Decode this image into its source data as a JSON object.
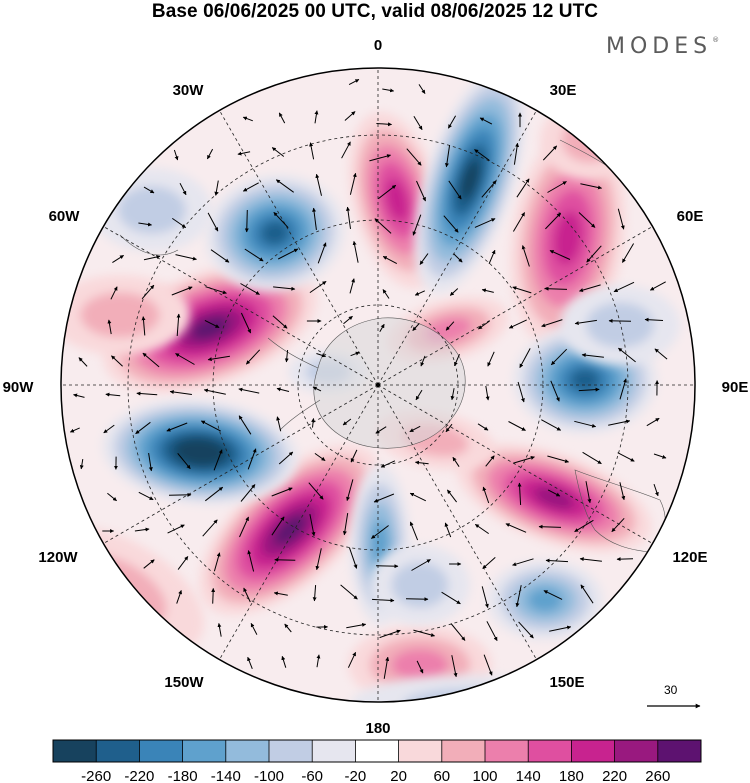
{
  "title": "Base 06/06/2025 00 UTC, valid 08/06/2025 12 UTC",
  "brand": "MODES",
  "brand_mark": "®",
  "longitude_labels": {
    "lon_0": "0",
    "lon_30e": "30E",
    "lon_60e": "60E",
    "lon_90e": "90E",
    "lon_120e": "120E",
    "lon_150e": "150E",
    "lon_180": "180",
    "lon_150w": "150W",
    "lon_120w": "120W",
    "lon_90w": "90W",
    "lon_60w": "60W",
    "lon_30w": "30W"
  },
  "vector_scale": {
    "label": "30"
  },
  "colorbar": {
    "colors": [
      "#17425e",
      "#1f5f8c",
      "#3a84b8",
      "#5fa1cd",
      "#93bbdc",
      "#c1cde4",
      "#e6e6ef",
      "#ffffff",
      "#f9d9db",
      "#f2aeb9",
      "#ec7fac",
      "#df4fa0",
      "#c8238f",
      "#99197f",
      "#5d1270"
    ],
    "ticks": [
      "-260",
      "-220",
      "-180",
      "-140",
      "-100",
      "-60",
      "-20",
      "20",
      "60",
      "100",
      "140",
      "180",
      "220",
      "260"
    ]
  }
}
